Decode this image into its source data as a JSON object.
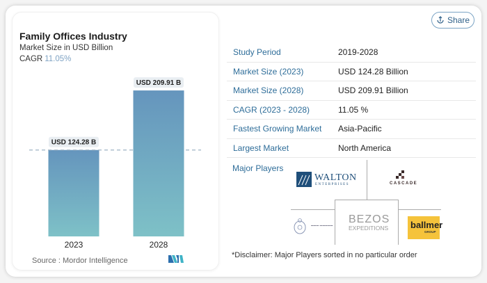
{
  "share": {
    "label": "Share",
    "icon": "share-icon"
  },
  "chart_card": {
    "title": "Family Offices Industry",
    "subtitle": "Market Size in USD Billion",
    "cagr_label": "CAGR",
    "cagr_value": "11.05%",
    "source": "Source :  Mordor Intelligence",
    "logo": "mordor-intelligence-logo"
  },
  "chart_data": {
    "type": "bar",
    "title": "Family Offices Industry",
    "subtitle": "Market Size in USD Billion",
    "categories": [
      "2023",
      "2028"
    ],
    "values": [
      124.28,
      209.91
    ],
    "data_labels": [
      "USD 124.28 B",
      "USD 209.91 B"
    ],
    "xlabel": "",
    "ylabel": "Market Size in USD Billion",
    "ylim": [
      0,
      220
    ],
    "reference_line": {
      "value": 124.28,
      "style": "dashed"
    },
    "grid": false,
    "legend": "none",
    "colors": {
      "bar_top": "#6595bd",
      "bar_bottom": "#7ec1c7",
      "reference_line": "#9fb3c4"
    }
  },
  "info_table": {
    "rows": [
      {
        "key": "Study Period",
        "value": "2019-2028"
      },
      {
        "key": "Market Size (2023)",
        "value": "USD 124.28 Billion"
      },
      {
        "key": "Market Size (2028)",
        "value": "USD 209.91 Billion"
      },
      {
        "key": "CAGR (2023 - 2028)",
        "value": "11.05 %"
      },
      {
        "key": "Fastest Growing Market",
        "value": "Asia-Pacific"
      },
      {
        "key": "Largest Market",
        "value": "North America"
      }
    ]
  },
  "major_players": {
    "label": "Major Players",
    "players": [
      {
        "name": "WALTON",
        "sub": "ENTERPRISES"
      },
      {
        "name": "CASCADE"
      },
      {
        "name": "BEZOS",
        "sub": "EXPEDITIONS"
      },
      {
        "name": "crest-logo"
      },
      {
        "name": "ballmer",
        "sub": "GROUP"
      }
    ],
    "disclaimer": "*Disclaimer: Major Players sorted in no particular order"
  },
  "colors": {
    "accent": "#2e6d99",
    "cagr": "#7fa3c4",
    "ballmer": "#f5c33b",
    "walton": "#1f4f7a"
  }
}
